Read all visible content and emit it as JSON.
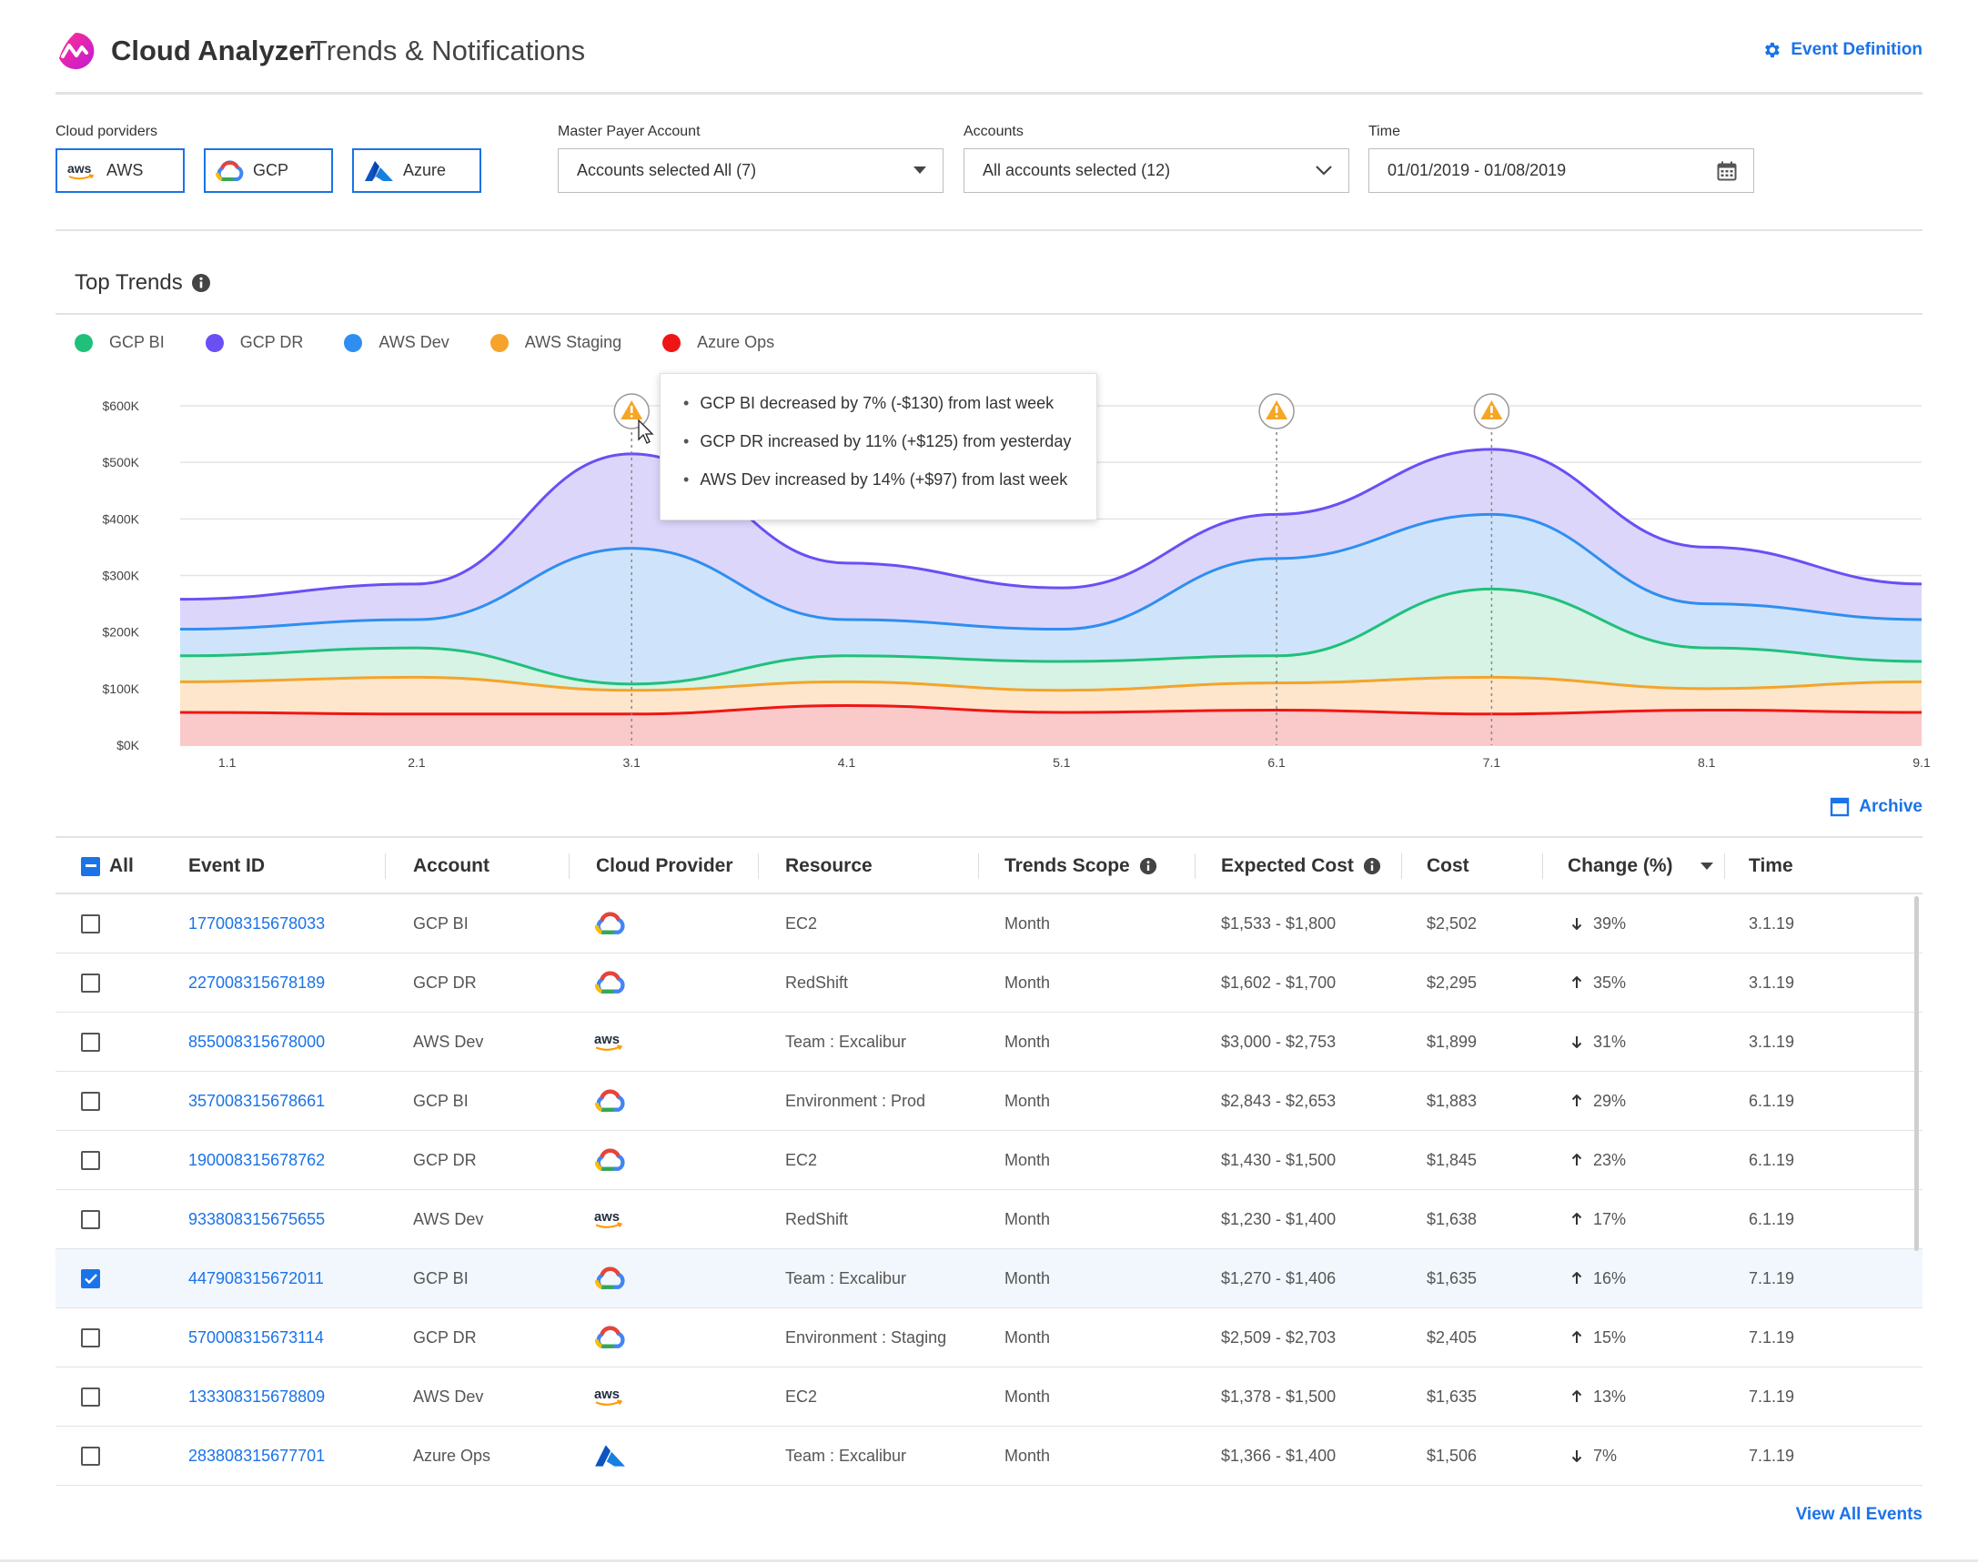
{
  "header": {
    "app_name": "Cloud Analyzer",
    "page_name": "Trends & Notifications",
    "event_definition": "Event Definition"
  },
  "filters": {
    "providers_label": "Cloud porviders",
    "providers": [
      {
        "name": "AWS",
        "icon": "aws-logo"
      },
      {
        "name": "GCP",
        "icon": "gcp-logo"
      },
      {
        "name": "Azure",
        "icon": "azure-logo"
      }
    ],
    "master_payer_label": "Master Payer Account",
    "master_payer_value": "Accounts selected All (7)",
    "accounts_label": "Accounts",
    "accounts_value": "All accounts selected (12)",
    "time_label": "Time",
    "time_value": "01/01/2019 - 01/08/2019"
  },
  "trends": {
    "title": "Top Trends",
    "tooltip": [
      "GCP BI decreased by 7% (-$130)  from last week",
      "GCP DR increased by 11% (+$125) from yesterday",
      "AWS Dev increased by 14% (+$97) from last week"
    ]
  },
  "chart_data": {
    "type": "area",
    "title": "Top Trends",
    "x_ticks": [
      "1.1",
      "2.1",
      "3.1",
      "4.1",
      "5.1",
      "6.1",
      "7.1",
      "8.1",
      "9.1"
    ],
    "y_ticks": [
      "$0K",
      "$100K",
      "$200K",
      "$300K",
      "$400K",
      "$500K",
      "$600K"
    ],
    "ylim": [
      0,
      600000
    ],
    "grid": true,
    "legend_position": "top-left",
    "x": [
      0.9,
      2.0,
      3.0,
      4.0,
      5.0,
      6.0,
      7.0,
      8.0,
      9.0
    ],
    "series": [
      {
        "name": "GCP BI",
        "color": "#20c07a",
        "values": [
          158000,
          172000,
          108000,
          158000,
          148000,
          158000,
          276000,
          172000,
          148000
        ]
      },
      {
        "name": "GCP DR",
        "color": "#6a4ff5",
        "values": [
          258000,
          285000,
          515000,
          322000,
          278000,
          408000,
          523000,
          350000,
          285000
        ]
      },
      {
        "name": "AWS Dev",
        "color": "#2f8ef0",
        "values": [
          205000,
          222000,
          348000,
          222000,
          205000,
          330000,
          408000,
          250000,
          222000
        ]
      },
      {
        "name": "AWS Staging",
        "color": "#f5a32a",
        "values": [
          112000,
          120000,
          97000,
          112000,
          97000,
          110000,
          120000,
          100000,
          112000
        ]
      },
      {
        "name": "Azure Ops",
        "color": "#f01515",
        "values": [
          58000,
          55000,
          55000,
          70000,
          58000,
          62000,
          55000,
          62000,
          58000
        ]
      }
    ],
    "alerts_at": [
      3.0,
      6.0,
      7.0
    ]
  },
  "archive_label": "Archive",
  "table": {
    "headers": {
      "all": "All",
      "event_id": "Event ID",
      "account": "Account",
      "cloud_provider": "Cloud Provider",
      "resource": "Resource",
      "trends_scope": "Trends Scope",
      "expected_cost": "Expected Cost",
      "cost": "Cost",
      "change": "Change (%)",
      "time": "Time"
    },
    "rows": [
      {
        "event_id": "177008315678033",
        "account": "GCP BI",
        "provider": "gcp",
        "resource": "EC2",
        "scope": "Month",
        "expected": "$1,533 - $1,800",
        "cost": "$2,502",
        "dir": "down",
        "change": "39%",
        "time": "3.1.19",
        "checked": false
      },
      {
        "event_id": "227008315678189",
        "account": "GCP DR",
        "provider": "gcp",
        "resource": "RedShift",
        "scope": "Month",
        "expected": "$1,602 - $1,700",
        "cost": "$2,295",
        "dir": "up",
        "change": "35%",
        "time": "3.1.19",
        "checked": false
      },
      {
        "event_id": "855008315678000",
        "account": "AWS Dev",
        "provider": "aws",
        "resource": "Team : Excalibur",
        "scope": "Month",
        "expected": "$3,000 - $2,753",
        "cost": "$1,899",
        "dir": "down",
        "change": "31%",
        "time": "3.1.19",
        "checked": false
      },
      {
        "event_id": "357008315678661",
        "account": "GCP BI",
        "provider": "gcp",
        "resource": "Environment : Prod",
        "scope": "Month",
        "expected": "$2,843 - $2,653",
        "cost": "$1,883",
        "dir": "up",
        "change": "29%",
        "time": "6.1.19",
        "checked": false
      },
      {
        "event_id": "190008315678762",
        "account": "GCP DR",
        "provider": "gcp",
        "resource": "EC2",
        "scope": "Month",
        "expected": "$1,430 - $1,500",
        "cost": "$1,845",
        "dir": "up",
        "change": "23%",
        "time": "6.1.19",
        "checked": false
      },
      {
        "event_id": "933808315675655",
        "account": "AWS Dev",
        "provider": "aws",
        "resource": "RedShift",
        "scope": "Month",
        "expected": "$1,230 - $1,400",
        "cost": "$1,638",
        "dir": "up",
        "change": "17%",
        "time": "6.1.19",
        "checked": false
      },
      {
        "event_id": "447908315672011",
        "account": "GCP BI",
        "provider": "gcp",
        "resource": "Team : Excalibur",
        "scope": "Month",
        "expected": "$1,270 - $1,406",
        "cost": "$1,635",
        "dir": "up",
        "change": "16%",
        "time": "7.1.19",
        "checked": true
      },
      {
        "event_id": "570008315673114",
        "account": "GCP DR",
        "provider": "gcp",
        "resource": "Environment : Staging",
        "scope": "Month",
        "expected": "$2,509 - $2,703",
        "cost": "$2,405",
        "dir": "up",
        "change": "15%",
        "time": "7.1.19",
        "checked": false
      },
      {
        "event_id": "133308315678809",
        "account": "AWS Dev",
        "provider": "aws",
        "resource": "EC2",
        "scope": "Month",
        "expected": "$1,378 - $1,500",
        "cost": "$1,635",
        "dir": "up",
        "change": "13%",
        "time": "7.1.19",
        "checked": false
      },
      {
        "event_id": "283808315677701",
        "account": "Azure Ops",
        "provider": "azure",
        "resource": "Team : Excalibur",
        "scope": "Month",
        "expected": "$1,366 - $1,400",
        "cost": "$1,506",
        "dir": "down",
        "change": "7%",
        "time": "7.1.19",
        "checked": false
      }
    ]
  },
  "view_all_label": "View All Events",
  "colors": {
    "accent": "#1a73e8",
    "brand": "#e4197a",
    "warning": "#f5a623"
  }
}
